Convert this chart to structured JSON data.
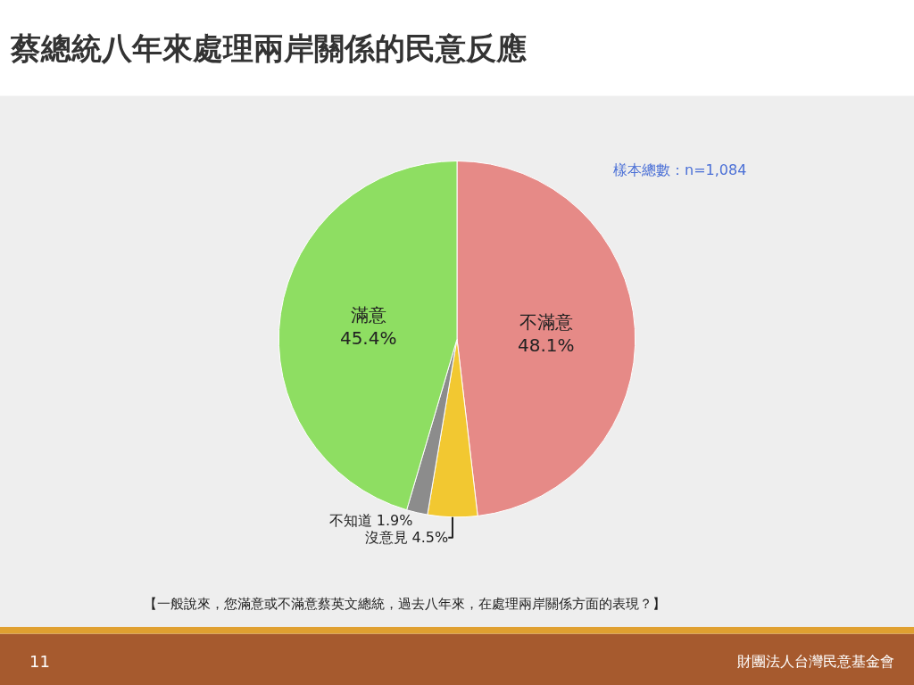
{
  "chart_data": {
    "type": "pie",
    "title": "蔡總統八年來處理兩岸關係的民意反應",
    "categories": [
      "不滿意",
      "沒意見",
      "不知道",
      "滿意"
    ],
    "values": [
      48.1,
      4.5,
      1.9,
      45.4
    ],
    "value_labels": [
      "48.1%",
      "4.5%",
      "1.9%",
      "45.4%"
    ],
    "colors": [
      "#e68a87",
      "#f2c831",
      "#8c8c8c",
      "#8ede62"
    ],
    "legend": false,
    "annotations": [
      "樣本總數：n=1,084",
      "【一般說來，您滿意或不滿意蔡英文總統，過去八年來，在處理兩岸關係方面的表現？】",
      "11",
      "財團法人台灣民意基金會"
    ]
  }
}
